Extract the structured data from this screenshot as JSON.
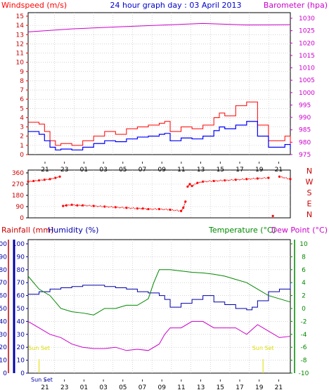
{
  "title": "24 hour graph day : 03 April 2013",
  "chart_data": [
    {
      "type": "line",
      "panel": "wind_baro",
      "left_axis_label": "Windspeed (m/s)",
      "right_axis_label": "Barometer (hpa)",
      "left_ticks": [
        "0",
        "1",
        "2",
        "3",
        "4",
        "5",
        "6",
        "7",
        "8",
        "9",
        "10",
        "11",
        "12",
        "13",
        "14",
        "15"
      ],
      "right_ticks": [
        "975",
        "980",
        "985",
        "990",
        "995",
        "1000",
        "1005",
        "1010",
        "1015",
        "1020",
        "1025",
        "1030"
      ],
      "ylim_left": [
        0,
        15
      ],
      "ylim_right": [
        975,
        1030
      ],
      "x_ticks": [
        "21",
        "23",
        "01",
        "03",
        "05",
        "07",
        "09",
        "11",
        "13",
        "15",
        "17",
        "19",
        "21",
        "23"
      ],
      "grid": true,
      "colors": {
        "gust": "#ff0000",
        "avg": "#0000ff",
        "baro": "#cc00cc"
      },
      "baro_x": [
        0,
        4,
        8,
        12,
        16,
        20,
        24
      ],
      "baro_y": [
        1024.5,
        1025.7,
        1026.5,
        1027.2,
        1027.9,
        1027.3,
        1027.4
      ],
      "gust_x": [
        0,
        1,
        1.5,
        2,
        2.5,
        3,
        4,
        5,
        6,
        7,
        8,
        9,
        10,
        11,
        12,
        12.5,
        13,
        14,
        15,
        16,
        17,
        17.5,
        18,
        19,
        20,
        21,
        22,
        23,
        23.5,
        24
      ],
      "gust_y": [
        3.5,
        3.3,
        2.5,
        1.5,
        1.0,
        1.2,
        1.0,
        1.5,
        2.0,
        2.5,
        2.2,
        2.8,
        3.0,
        3.2,
        3.4,
        3.6,
        2.5,
        3.0,
        2.8,
        3.2,
        4.0,
        4.5,
        4.2,
        5.3,
        5.7,
        3.2,
        1.5,
        1.5,
        2.0,
        1.0
      ],
      "avg_x": [
        0,
        1,
        1.5,
        2,
        2.5,
        3,
        4,
        5,
        6,
        7,
        8,
        9,
        10,
        11,
        12,
        12.5,
        13,
        14,
        15,
        16,
        17,
        17.5,
        18,
        19,
        20,
        21,
        22,
        23,
        23.5,
        24
      ],
      "avg_y": [
        2.5,
        2.2,
        1.5,
        0.8,
        0.5,
        0.6,
        0.5,
        0.8,
        1.2,
        1.5,
        1.4,
        1.7,
        1.9,
        2.0,
        2.2,
        2.3,
        1.5,
        1.8,
        1.7,
        2.0,
        2.6,
        3.0,
        2.8,
        3.2,
        3.6,
        2.0,
        0.8,
        0.8,
        1.1,
        0.6
      ]
    },
    {
      "type": "scatter",
      "panel": "wind_direction",
      "right_labels": [
        "N",
        "W",
        "S",
        "E",
        "N"
      ],
      "left_ticks": [
        "0",
        "90",
        "180",
        "270",
        "360"
      ],
      "ylim": [
        0,
        360
      ],
      "x_ticks": [
        "21",
        "23",
        "01",
        "03",
        "05",
        "07",
        "09",
        "11",
        "13",
        "15",
        "17",
        "19",
        "21",
        "23"
      ],
      "color": "#ff0000",
      "x": [
        0,
        0.5,
        1,
        1.5,
        2,
        2.5,
        2.9,
        3.2,
        3.5,
        4,
        4.5,
        5,
        6,
        7,
        8,
        9,
        10,
        10.5,
        11,
        12,
        13,
        14,
        14.2,
        14.4,
        14.6,
        14.8,
        15,
        15.5,
        16,
        17,
        18,
        19,
        20,
        21,
        22,
        22.4,
        23,
        24
      ],
      "y": [
        290,
        295,
        300,
        305,
        310,
        320,
        330,
        95,
        100,
        105,
        100,
        100,
        95,
        90,
        85,
        80,
        75,
        75,
        70,
        70,
        65,
        55,
        80,
        130,
        250,
        270,
        255,
        280,
        290,
        295,
        300,
        305,
        310,
        315,
        320,
        15,
        330,
        310
      ]
    },
    {
      "type": "line",
      "panel": "rain_hum_temp",
      "left_axis_label": "Rainfall (mm)",
      "left_axis_label_2": "Humidity (%)",
      "right_axis_label": "Temperature (°C)",
      "right_axis_label_2": "Dew Point (°C)",
      "left_ticks": [
        "0",
        "10",
        "20",
        "30",
        "40",
        "50",
        "60",
        "70",
        "80",
        "90",
        "100"
      ],
      "right_ticks": [
        "-10",
        "-8",
        "-6",
        "-4",
        "-2",
        "0",
        "2",
        "4",
        "6",
        "8",
        "10"
      ],
      "ylim_left": [
        0,
        100
      ],
      "ylim_right": [
        -10,
        10
      ],
      "x_ticks": [
        "21",
        "23",
        "01",
        "03",
        "05",
        "07",
        "09",
        "11",
        "13",
        "15",
        "17",
        "19",
        "21",
        "23"
      ],
      "sunset_label": "Sun Set",
      "annotations": [
        {
          "text": "Sun Set",
          "x": 1
        },
        {
          "text": "Sun Set",
          "x": 21.5
        }
      ],
      "bottom_left_label": "Sun Set",
      "colors": {
        "humidity": "#0000aa",
        "temperature": "#008800",
        "dewpoint": "#cc00cc",
        "rain": "#ff0000"
      },
      "hum_x": [
        0,
        1,
        2,
        3,
        4,
        5,
        6,
        7,
        8,
        9,
        10,
        11,
        12,
        12.5,
        13,
        14,
        15,
        16,
        17,
        18,
        19,
        20,
        20.5,
        21,
        22,
        23,
        24
      ],
      "hum_y": [
        61,
        63,
        65,
        66,
        67,
        68,
        68,
        67,
        66,
        65,
        63,
        62,
        60,
        57,
        51,
        54,
        57,
        60,
        55,
        53,
        50,
        49,
        51,
        56,
        63,
        65,
        70
      ],
      "temp_x": [
        0,
        1,
        2,
        3,
        4,
        5,
        6,
        7,
        8,
        9,
        10,
        11,
        11.5,
        12,
        13,
        14,
        15,
        16,
        17,
        18,
        19,
        20,
        21,
        22,
        23,
        24
      ],
      "temp_y": [
        5.0,
        3.0,
        2.0,
        0.0,
        -0.5,
        -0.7,
        -1.0,
        0.0,
        0.0,
        0.5,
        0.5,
        1.5,
        4.0,
        6.0,
        6.0,
        5.8,
        5.6,
        5.5,
        5.3,
        5.0,
        4.5,
        4.0,
        3.0,
        2.0,
        1.5,
        1.0
      ],
      "dew_x": [
        0,
        1,
        2,
        3,
        4,
        5,
        6,
        7,
        8,
        9,
        10,
        11,
        12,
        12.5,
        13,
        14,
        15,
        16,
        17,
        18,
        19,
        20,
        21,
        22,
        23,
        24
      ],
      "dew_y": [
        -2.0,
        -3.0,
        -4.0,
        -4.5,
        -5.5,
        -6.0,
        -6.2,
        -6.2,
        -6.0,
        -6.5,
        -6.3,
        -6.5,
        -5.5,
        -4.0,
        -3.0,
        -3.0,
        -2.0,
        -2.0,
        -3.0,
        -3.0,
        -3.0,
        -4.0,
        -2.5,
        -3.5,
        -4.5,
        -4.3
      ]
    }
  ]
}
